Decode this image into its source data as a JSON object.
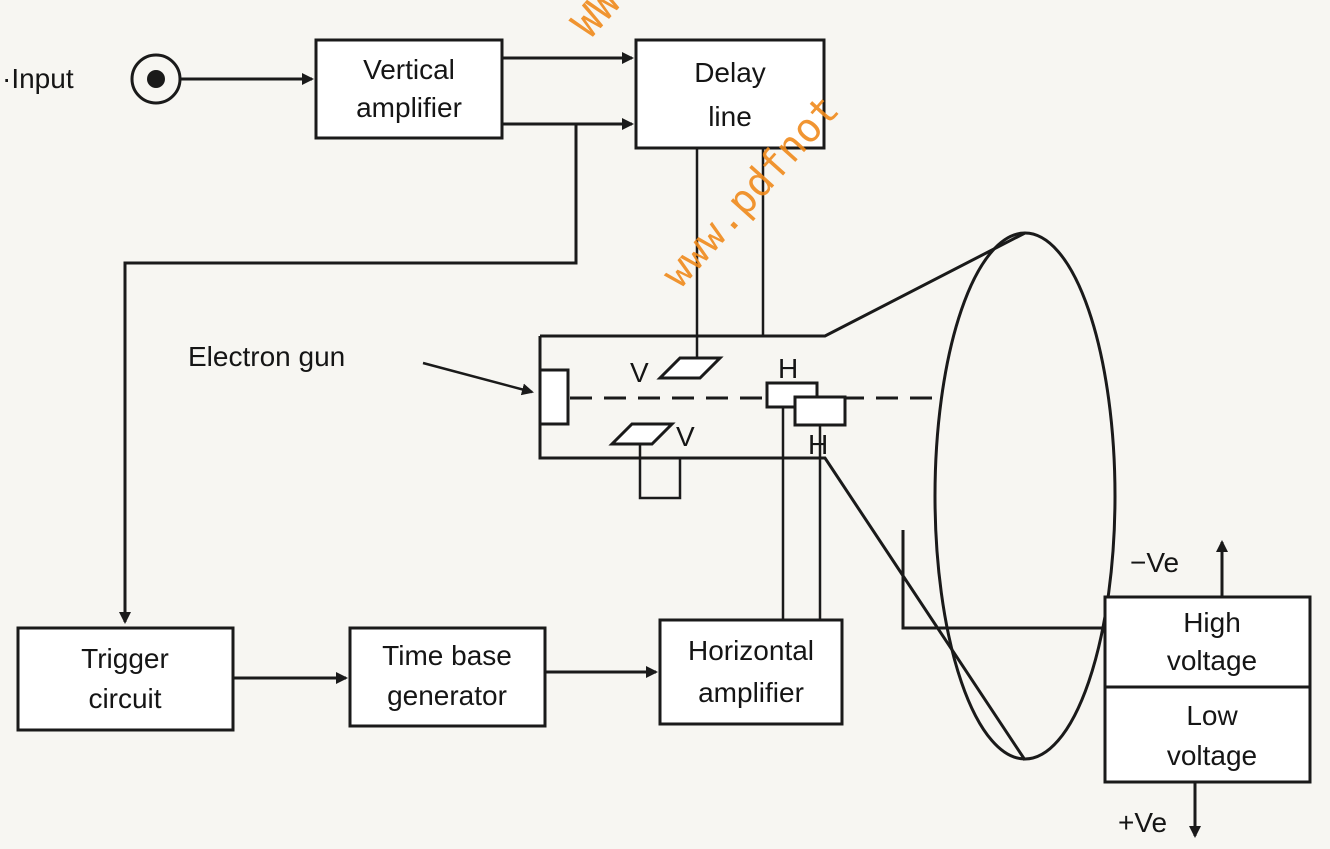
{
  "colors": {
    "ink": "#1a1a1a",
    "paper": "#f7f6f2",
    "watermark": "#f08a1c"
  },
  "labels": {
    "input": "·Input",
    "vertical_amplifier": [
      "Vertical",
      "amplifier"
    ],
    "delay_line": [
      "Delay",
      "line"
    ],
    "electron_gun": "Electron gun",
    "plate_v": "V",
    "plate_h": "H",
    "trigger_circuit": [
      "Trigger",
      "circuit"
    ],
    "time_base_generator": [
      "Time base",
      "generator"
    ],
    "horizontal_amplifier": [
      "Horizontal",
      "amplifier"
    ],
    "high_voltage": [
      "High",
      "voltage"
    ],
    "low_voltage": [
      "Low",
      "voltage"
    ],
    "neg_ve": "−Ve",
    "pos_ve": "+Ve"
  },
  "watermark": {
    "text": "www.pdfnot",
    "fragment": "WW"
  }
}
